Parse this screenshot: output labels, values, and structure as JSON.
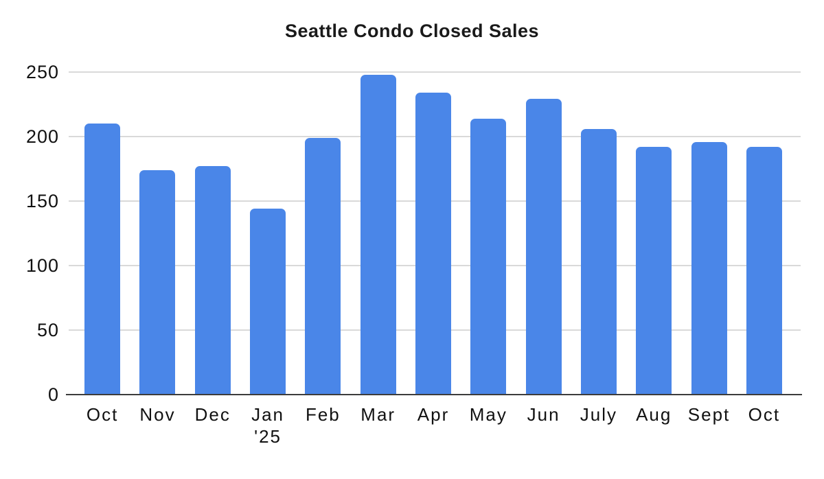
{
  "page": {
    "background_color": "#ffffff"
  },
  "chart_data": {
    "type": "bar",
    "title": "Seattle Condo Closed Sales",
    "categories": [
      "Oct",
      "Nov",
      "Dec",
      "Jan",
      "Feb",
      "Mar",
      "Apr",
      "May",
      "Jun",
      "July",
      "Aug",
      "Sept",
      "Oct"
    ],
    "category_sublabels": [
      "",
      "",
      "",
      "'25",
      "",
      "",
      "",
      "",
      "",
      "",
      "",
      "",
      ""
    ],
    "values": [
      210,
      174,
      177,
      144,
      199,
      248,
      234,
      214,
      229,
      206,
      192,
      196,
      192
    ],
    "xlabel": "",
    "ylabel": "",
    "ylim": [
      0,
      250
    ],
    "y_ticks": [
      0,
      50,
      100,
      150,
      200,
      250
    ],
    "grid": true,
    "legend_position": "none",
    "bar_color": "#4a86e8",
    "gridline_color": "#d9d9d9",
    "axis_line_color": "#3c3c3c",
    "text_color": "#111111"
  }
}
